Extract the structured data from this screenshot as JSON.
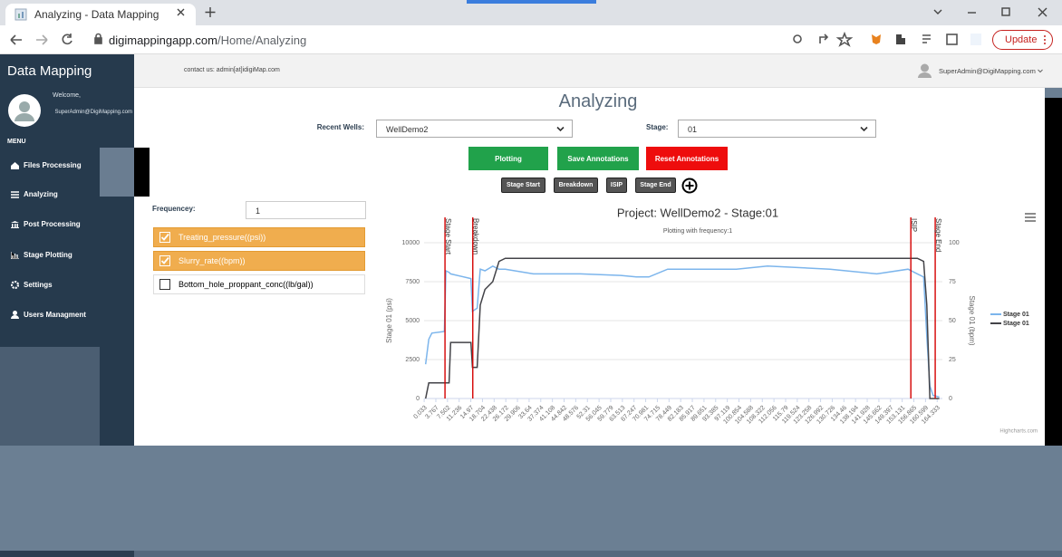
{
  "browser": {
    "tab_title": "Analyzing - Data Mapping",
    "url_host": "digimappingapp.com",
    "url_path": "/Home/Analyzing",
    "update_button": "Update"
  },
  "sidebar": {
    "brand": "Data Mapping",
    "welcome": "Welcome,",
    "user": "SuperAdmin@DigiMapping.com",
    "menu_label": "MENU",
    "items": [
      "Files Processing",
      "Analyzing",
      "Post Processing",
      "Stage Plotting",
      "Settings",
      "Users Managment"
    ]
  },
  "header": {
    "contact": "contact us: admin[at]idigiMap.com",
    "user": "SuperAdmin@DigiMapping.com"
  },
  "page": {
    "title": "Analyzing",
    "recent_wells_label": "Recent Wells:",
    "recent_well": "WellDemo2",
    "stage_label": "Stage:",
    "stage": "01",
    "buttons": [
      "Plotting",
      "Save Annotations",
      "Reset Annotations"
    ],
    "annotation_buttons": [
      "Stage Start",
      "Breakdown",
      "ISIP",
      "Stage End"
    ],
    "frequency_label": "Frequencey:",
    "frequency": "1",
    "checkboxes": [
      {
        "label": "Treating_pressure((psi))",
        "checked": true
      },
      {
        "label": "Slurry_rate((bpm))",
        "checked": true
      },
      {
        "label": "Bottom_hole_proppant_conc((lb/gal))",
        "checked": false
      }
    ]
  },
  "chart_data": {
    "type": "line",
    "title": "Project: WellDemo2 - Stage:01",
    "subtitle": "Plotting with frequency:1",
    "y_label": "Stage 01 (psi)",
    "y2_label": "Stage 01 (bpm)",
    "credits": "Highcharts.com",
    "x": [
      0.5,
      1.5,
      2.5,
      6.5,
      7.0,
      8.0,
      8.5,
      15.0,
      15.5,
      17.0,
      18.0,
      19.5,
      22.0,
      24.0,
      26.0,
      35,
      50,
      63,
      68,
      72,
      78,
      100,
      110,
      130,
      145,
      155,
      158,
      160,
      161,
      162,
      163,
      165
    ],
    "series": [
      {
        "name": "Stage 01",
        "color": "#7cb5ec",
        "values": [
          2200,
          3800,
          4200,
          4300,
          8200,
          8100,
          8000,
          7700,
          5600,
          5800,
          8300,
          8200,
          8500,
          8300,
          8300,
          8000,
          8000,
          7900,
          7800,
          7800,
          8300,
          8300,
          8500,
          8300,
          8000,
          8300,
          8000,
          7800,
          4000,
          800,
          200,
          100
        ]
      },
      {
        "name": "Stage 01",
        "color": "#434348",
        "axis": "y2",
        "values": [
          0,
          10,
          10,
          10,
          10,
          10,
          36,
          36,
          20,
          20,
          60,
          70,
          75,
          88,
          90,
          90,
          90,
          90,
          90,
          90,
          90,
          90,
          90,
          90,
          90,
          90,
          90,
          88,
          60,
          0,
          0,
          0
        ]
      }
    ],
    "plot_lines": [
      {
        "label": "Stage Start",
        "value": 6.7
      },
      {
        "label": "Breakdown",
        "value": 15.6
      },
      {
        "label": "ISIP",
        "value": 155.9
      },
      {
        "label": "Stage End",
        "value": 163.7
      }
    ],
    "xlim": [
      0,
      166
    ],
    "xticks": [
      0.033,
      3.767,
      7.502,
      11.236,
      14.97,
      18.704,
      22.438,
      26.172,
      29.906,
      33.64,
      37.374,
      41.108,
      44.842,
      48.576,
      52.31,
      56.045,
      59.779,
      63.513,
      67.247,
      70.981,
      74.715,
      78.449,
      82.183,
      85.917,
      89.651,
      93.385,
      97.119,
      100.854,
      104.588,
      108.322,
      112.056,
      115.79,
      119.524,
      123.258,
      126.992,
      130.726,
      134.46,
      138.194,
      141.928,
      145.662,
      149.397,
      153.131,
      156.865,
      160.599,
      164.333
    ],
    "ylim": [
      0,
      10000
    ],
    "yticks": [
      0,
      2500,
      5000,
      7500,
      10000
    ],
    "y2lim": [
      0,
      100
    ],
    "y2ticks": [
      0,
      25,
      50,
      75,
      100
    ],
    "grid": true,
    "legend": "right"
  }
}
